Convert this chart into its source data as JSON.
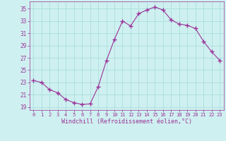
{
  "x": [
    0,
    1,
    2,
    3,
    4,
    5,
    6,
    7,
    8,
    9,
    10,
    11,
    12,
    13,
    14,
    15,
    16,
    17,
    18,
    19,
    20,
    21,
    22,
    23
  ],
  "y": [
    23.3,
    23.0,
    21.8,
    21.3,
    20.2,
    19.7,
    19.4,
    19.5,
    22.3,
    26.5,
    30.0,
    33.0,
    32.2,
    34.2,
    34.8,
    35.3,
    34.8,
    33.2,
    32.5,
    32.3,
    31.8,
    29.7,
    28.0,
    26.6
  ],
  "line_color": "#993399",
  "marker": "+",
  "background_color": "#cff0f0",
  "grid_color": "#aadddd",
  "xlabel": "Windchill (Refroidissement éolien,°C)",
  "xlabel_color": "#993399",
  "tick_color": "#993399",
  "xlim": [
    -0.5,
    23.5
  ],
  "ylim": [
    18.5,
    36.2
  ],
  "yticks": [
    19,
    21,
    23,
    25,
    27,
    29,
    31,
    33,
    35
  ],
  "xticks": [
    0,
    1,
    2,
    3,
    4,
    5,
    6,
    7,
    8,
    9,
    10,
    11,
    12,
    13,
    14,
    15,
    16,
    17,
    18,
    19,
    20,
    21,
    22,
    23
  ],
  "figsize": [
    3.2,
    2.0
  ],
  "dpi": 100
}
